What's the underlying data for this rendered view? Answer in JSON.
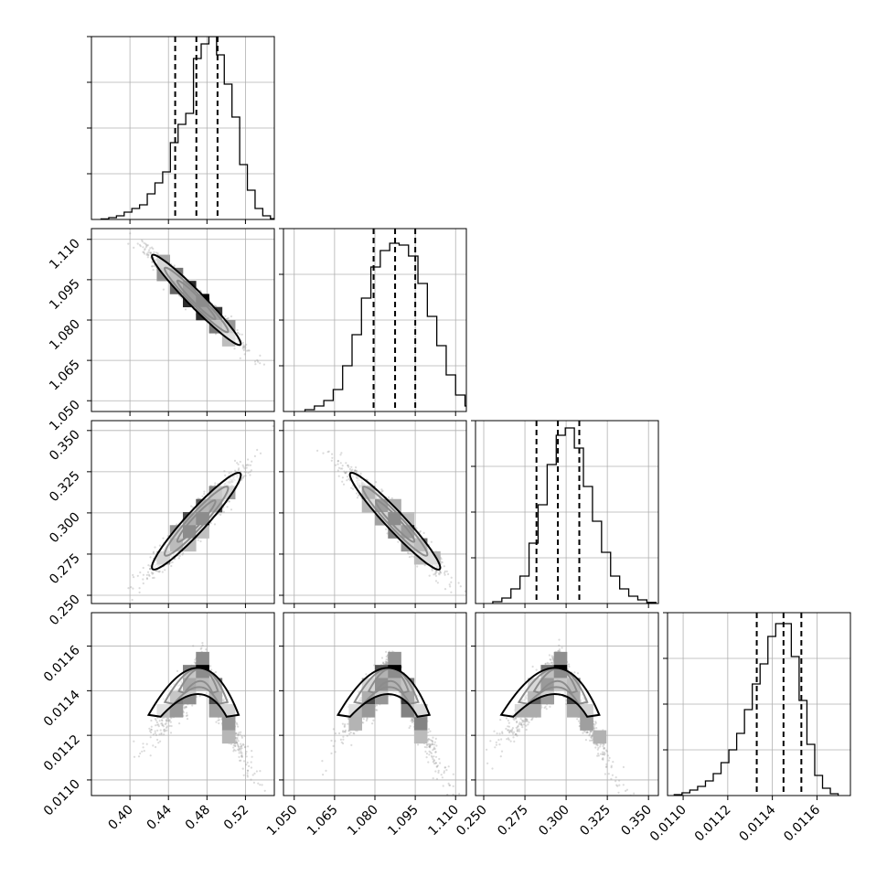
{
  "chart_data": {
    "type": "corner",
    "grid": true,
    "panels": {
      "grid_size": 4,
      "histogram_axes": [
        {
          "ylim": [
            0,
            1
          ]
        },
        {
          "ylim": [
            0,
            1
          ]
        },
        {
          "ylim": [
            0,
            1
          ]
        },
        {
          "ylim": [
            0,
            1
          ]
        }
      ]
    },
    "parameters": [
      {
        "range": [
          0.36,
          0.55
        ],
        "ticks": [
          0.4,
          0.44,
          0.48,
          0.52
        ],
        "tick_labels": [
          "0.40",
          "0.44",
          "0.48",
          "0.52"
        ],
        "quantiles": [
          0.447,
          0.469,
          0.491
        ]
      },
      {
        "range": [
          1.046,
          1.114
        ],
        "ticks": [
          1.05,
          1.065,
          1.08,
          1.095,
          1.11
        ],
        "tick_labels": [
          "1.050",
          "1.065",
          "1.080",
          "1.095",
          "1.110"
        ],
        "quantiles": [
          1.0795,
          1.0875,
          1.095
        ]
      },
      {
        "range": [
          0.245,
          0.356
        ],
        "ticks": [
          0.25,
          0.275,
          0.3,
          0.325,
          0.35
        ],
        "tick_labels": [
          "0.250",
          "0.275",
          "0.300",
          "0.325",
          "0.350"
        ],
        "quantiles": [
          0.282,
          0.295,
          0.308
        ]
      },
      {
        "range": [
          0.01093,
          0.01175
        ],
        "ticks": [
          0.011,
          0.0112,
          0.0114,
          0.0116
        ],
        "tick_labels": [
          "0.0110",
          "0.0112",
          "0.0114",
          "0.0116"
        ],
        "quantiles": [
          0.01133,
          0.01145,
          0.01153
        ]
      }
    ],
    "histograms": [
      {
        "bin_width": 0.008,
        "bins": [
          [
            0.37,
            0.003
          ],
          [
            0.378,
            0.01
          ],
          [
            0.386,
            0.02
          ],
          [
            0.394,
            0.04
          ],
          [
            0.402,
            0.06
          ],
          [
            0.41,
            0.08
          ],
          [
            0.418,
            0.14
          ],
          [
            0.426,
            0.2
          ],
          [
            0.434,
            0.26
          ],
          [
            0.442,
            0.42
          ],
          [
            0.45,
            0.52
          ],
          [
            0.458,
            0.58
          ],
          [
            0.466,
            0.88
          ],
          [
            0.474,
            0.96
          ],
          [
            0.482,
            1.0
          ],
          [
            0.49,
            0.9
          ],
          [
            0.498,
            0.74
          ],
          [
            0.506,
            0.56
          ],
          [
            0.514,
            0.3
          ],
          [
            0.522,
            0.16
          ],
          [
            0.53,
            0.06
          ],
          [
            0.538,
            0.02
          ],
          [
            0.546,
            0.004
          ]
        ]
      },
      {
        "bin_width": 0.0035,
        "bins": [
          [
            1.054,
            0.01
          ],
          [
            1.0575,
            0.03
          ],
          [
            1.061,
            0.06
          ],
          [
            1.0645,
            0.12
          ],
          [
            1.068,
            0.25
          ],
          [
            1.0715,
            0.42
          ],
          [
            1.075,
            0.62
          ],
          [
            1.0785,
            0.79
          ],
          [
            1.082,
            0.88
          ],
          [
            1.0855,
            0.92
          ],
          [
            1.089,
            0.91
          ],
          [
            1.0925,
            0.85
          ],
          [
            1.096,
            0.7
          ],
          [
            1.0995,
            0.52
          ],
          [
            1.103,
            0.36
          ],
          [
            1.1065,
            0.2
          ],
          [
            1.11,
            0.09
          ],
          [
            1.1135,
            0.03
          ]
        ]
      },
      {
        "bin_width": 0.0055,
        "bins": [
          [
            0.2555,
            0.01
          ],
          [
            0.261,
            0.03
          ],
          [
            0.2665,
            0.08
          ],
          [
            0.272,
            0.15
          ],
          [
            0.2775,
            0.33
          ],
          [
            0.283,
            0.54
          ],
          [
            0.2885,
            0.76
          ],
          [
            0.294,
            0.92
          ],
          [
            0.2995,
            0.96
          ],
          [
            0.305,
            0.85
          ],
          [
            0.3105,
            0.64
          ],
          [
            0.316,
            0.45
          ],
          [
            0.3215,
            0.28
          ],
          [
            0.327,
            0.15
          ],
          [
            0.3325,
            0.08
          ],
          [
            0.338,
            0.04
          ],
          [
            0.3435,
            0.02
          ],
          [
            0.349,
            0.006
          ]
        ]
      },
      {
        "bin_width": 3.5e-05,
        "bins": [
          [
            0.01096,
            0.005
          ],
          [
            0.010995,
            0.015
          ],
          [
            0.01103,
            0.03
          ],
          [
            0.011065,
            0.05
          ],
          [
            0.0111,
            0.08
          ],
          [
            0.011135,
            0.12
          ],
          [
            0.01117,
            0.18
          ],
          [
            0.011205,
            0.25
          ],
          [
            0.01124,
            0.34
          ],
          [
            0.011275,
            0.47
          ],
          [
            0.01131,
            0.61
          ],
          [
            0.011345,
            0.72
          ],
          [
            0.01138,
            0.87
          ],
          [
            0.011415,
            0.94
          ],
          [
            0.01145,
            0.94
          ],
          [
            0.011485,
            0.76
          ],
          [
            0.01152,
            0.52
          ],
          [
            0.011555,
            0.28
          ],
          [
            0.01159,
            0.11
          ],
          [
            0.011625,
            0.04
          ],
          [
            0.01166,
            0.01
          ]
        ]
      }
    ],
    "pairs": [
      {
        "row": 1,
        "col": 0,
        "kind": "linear",
        "mean": [
          0.469,
          1.0875
        ],
        "sd": [
          0.022,
          0.008
        ],
        "rho": -0.97
      },
      {
        "row": 2,
        "col": 0,
        "kind": "linear",
        "mean": [
          0.469,
          0.295
        ],
        "sd": [
          0.022,
          0.014
        ],
        "rho": 0.95
      },
      {
        "row": 2,
        "col": 1,
        "kind": "linear",
        "mean": [
          1.0875,
          0.295
        ],
        "sd": [
          0.008,
          0.014
        ],
        "rho": -0.96
      },
      {
        "row": 3,
        "col": 0,
        "kind": "arch",
        "peak": [
          0.475,
          0.011505
        ],
        "slope_left": 7.6e-07,
        "slope_right": -1.2e-06,
        "sd": [
          0.022,
          5e-05
        ]
      },
      {
        "row": 3,
        "col": 1,
        "kind": "arch",
        "peak": [
          1.0865,
          0.011505
        ],
        "slope_left": 2.2e-09,
        "slope_right": -3.4e-09,
        "sd": [
          0.008,
          5e-05
        ]
      },
      {
        "row": 3,
        "col": 2,
        "kind": "arch",
        "peak": [
          0.296,
          0.011505
        ],
        "slope_left": 1.2e-09,
        "slope_right": -1.9e-09,
        "sd": [
          0.014,
          5e-05
        ]
      }
    ]
  }
}
